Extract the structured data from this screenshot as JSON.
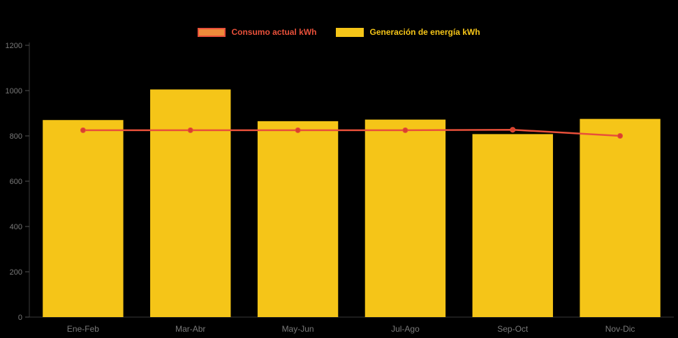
{
  "chart_data": {
    "type": "bar",
    "title": "",
    "xlabel": "",
    "ylabel": "",
    "categories": [
      "Ene-Feb",
      "Mar-Abr",
      "May-Jun",
      "Jul-Ago",
      "Sep-Oct",
      "Nov-Dic"
    ],
    "series": [
      {
        "name": "Consumo actual kWh",
        "type": "line",
        "color": "#e8503a",
        "point_color": "#d9402c",
        "values": [
          825,
          825,
          825,
          825,
          827,
          800
        ]
      },
      {
        "name": "Generación de energía kWh",
        "type": "bar",
        "color": "#f5c518",
        "values": [
          870,
          1005,
          865,
          872,
          808,
          875
        ]
      }
    ],
    "legend": {
      "position": "top",
      "items": [
        {
          "label": "Consumo actual kWh",
          "swatch_fill": "#ef8b3a",
          "swatch_border": "#e8503a",
          "text_color": "#e8503a"
        },
        {
          "label": "Generación de energía kWh",
          "swatch_fill": "#f5c518",
          "swatch_border": "#f5c518",
          "text_color": "#f5c518"
        }
      ]
    },
    "ylim": [
      0,
      1200
    ],
    "yticks": [
      0,
      200,
      400,
      600,
      800,
      1000,
      1200
    ],
    "grid": false,
    "background": "#000000",
    "axis_color": "#3a3a3a",
    "tick_color": "#555555",
    "tick_label_color": "#7a7a7a"
  }
}
